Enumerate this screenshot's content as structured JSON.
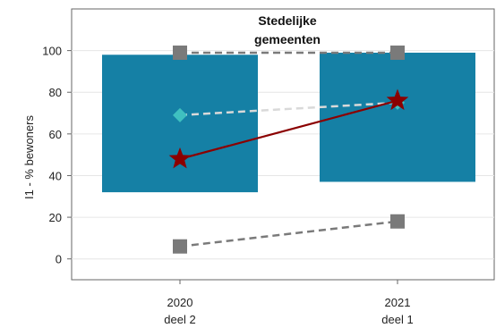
{
  "chart_data": {
    "type": "bar",
    "title_lines": [
      "Stedelijke",
      "gemeenten"
    ],
    "ylabel": "I1 - % bewoners",
    "ylim": [
      -10,
      120
    ],
    "yticks": [
      0,
      20,
      40,
      60,
      80,
      100
    ],
    "grid": true,
    "categories": [
      {
        "line1": "2020",
        "line2": "deel 2"
      },
      {
        "line1": "2021",
        "line2": "deel 1"
      }
    ],
    "range_bars": {
      "color": "#1580a5",
      "low": [
        32,
        37
      ],
      "high": [
        98,
        99
      ]
    },
    "series": [
      {
        "marker": "square",
        "color": "#7a7a7a",
        "line_style": "dashed",
        "values": [
          99,
          99
        ]
      },
      {
        "marker": "square",
        "color": "#7a7a7a",
        "line_style": "dashed",
        "values": [
          6,
          18
        ]
      },
      {
        "marker": "diamond",
        "color": "#3fc0c0",
        "line_color": "#d9d9d9",
        "line_style": "dashed",
        "values": [
          69,
          75
        ]
      },
      {
        "marker": "star",
        "color": "#8b0000",
        "line_style": "solid",
        "values": [
          48,
          76
        ]
      }
    ]
  }
}
